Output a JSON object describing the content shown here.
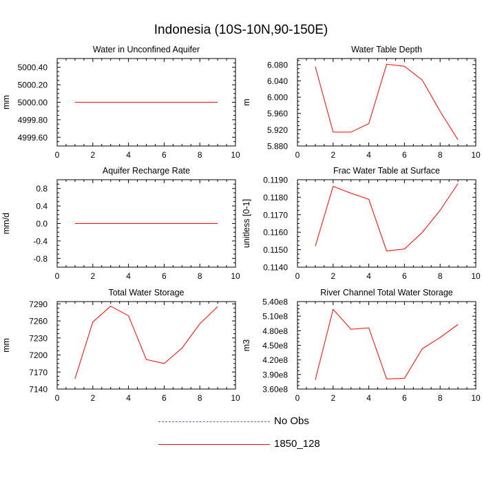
{
  "title": "Indonesia (10S-10N,90-150E)",
  "colors": {
    "model": "#ff0000",
    "obs": "#6060c0"
  },
  "legend": {
    "obs_label": "No Obs",
    "model_label": "1850_128"
  },
  "chart_data": [
    {
      "type": "line",
      "title": "Water in Unconfined Aquifer",
      "ylabel": "mm",
      "xlim": [
        0,
        10
      ],
      "ylim": [
        4999.5,
        5000.5
      ],
      "xticks": [
        0,
        2,
        4,
        6,
        8,
        10
      ],
      "yticks": [
        4999.6,
        4999.8,
        5000.0,
        5000.2,
        5000.4
      ],
      "ytick_labels": [
        "4999.60",
        "4999.80",
        "5000.00",
        "5000.20",
        "5000.40"
      ],
      "series": [
        {
          "name": "1850_128",
          "x": [
            1,
            2,
            3,
            4,
            5,
            6,
            7,
            8,
            9
          ],
          "values": [
            5000,
            5000,
            5000,
            5000,
            5000,
            5000,
            5000,
            5000,
            5000
          ]
        }
      ]
    },
    {
      "type": "line",
      "title": "Water Table Depth",
      "ylabel": "m",
      "xlim": [
        0,
        10
      ],
      "ylim": [
        5.88,
        6.095
      ],
      "xticks": [
        0,
        2,
        4,
        6,
        8,
        10
      ],
      "yticks": [
        5.88,
        5.92,
        5.96,
        6.0,
        6.04,
        6.08
      ],
      "ytick_labels": [
        "5.880",
        "5.920",
        "5.960",
        "6.000",
        "6.040",
        "6.080"
      ],
      "series": [
        {
          "name": "1850_128",
          "x": [
            1,
            2,
            3,
            4,
            5,
            6,
            7,
            8,
            9
          ],
          "values": [
            6.075,
            5.914,
            5.914,
            5.935,
            6.081,
            6.076,
            6.042,
            5.965,
            5.895
          ]
        }
      ]
    },
    {
      "type": "line",
      "title": "Aquifer Recharge Rate",
      "ylabel": "mm/d",
      "xlim": [
        0,
        10
      ],
      "ylim": [
        -1.0,
        1.0
      ],
      "xticks": [
        0,
        2,
        4,
        6,
        8,
        10
      ],
      "yticks": [
        -0.8,
        -0.4,
        0.0,
        0.4,
        0.8
      ],
      "ytick_labels": [
        "-0.8",
        "-0.4",
        "0.0",
        "0.4",
        "0.8"
      ],
      "series": [
        {
          "name": "1850_128",
          "x": [
            1,
            2,
            3,
            4,
            5,
            6,
            7,
            8,
            9
          ],
          "values": [
            0,
            0,
            0,
            0,
            0,
            0,
            0,
            0,
            0
          ]
        }
      ]
    },
    {
      "type": "line",
      "title": "Frac Water Table at Surface",
      "ylabel": "unitless [0-1]",
      "xlim": [
        0,
        10
      ],
      "ylim": [
        0.114,
        0.119
      ],
      "xticks": [
        0,
        2,
        4,
        6,
        8,
        10
      ],
      "yticks": [
        0.114,
        0.115,
        0.116,
        0.117,
        0.118,
        0.119
      ],
      "ytick_labels": [
        "0.1140",
        "0.1150",
        "0.1160",
        "0.1170",
        "0.1180",
        "0.1190"
      ],
      "series": [
        {
          "name": "1850_128",
          "x": [
            1,
            2,
            3,
            4,
            5,
            6,
            7,
            8,
            9
          ],
          "values": [
            0.1152,
            0.11862,
            0.11823,
            0.11788,
            0.11493,
            0.11504,
            0.11599,
            0.11725,
            0.11878
          ]
        }
      ]
    },
    {
      "type": "line",
      "title": "Total Water Storage",
      "ylabel": "mm",
      "xlim": [
        0,
        10
      ],
      "ylim": [
        7140,
        7294
      ],
      "xticks": [
        0,
        2,
        4,
        6,
        8,
        10
      ],
      "yticks": [
        7140,
        7170,
        7200,
        7230,
        7260,
        7290
      ],
      "ytick_labels": [
        "7140",
        "7170",
        "7200",
        "7230",
        "7260",
        "7290"
      ],
      "series": [
        {
          "name": "1850_128",
          "x": [
            1,
            2,
            3,
            4,
            5,
            6,
            7,
            8,
            9
          ],
          "values": [
            7158,
            7258,
            7286,
            7269,
            7192,
            7185,
            7212,
            7255,
            7285
          ]
        }
      ]
    },
    {
      "type": "line",
      "title": "River Channel Total Water Storage",
      "ylabel": "m3",
      "xlim": [
        0,
        10
      ],
      "ylim": [
        360000000.0,
        540000000.0
      ],
      "xticks": [
        0,
        2,
        4,
        6,
        8,
        10
      ],
      "yticks": [
        360000000.0,
        390000000.0,
        420000000.0,
        450000000.0,
        480000000.0,
        510000000.0,
        540000000.0
      ],
      "ytick_labels": [
        "3.60e8",
        "3.90e8",
        "4.20e8",
        "4.50e8",
        "4.80e8",
        "5.10e8",
        "5.40e8"
      ],
      "series": [
        {
          "name": "1850_128",
          "x": [
            1,
            2,
            3,
            4,
            5,
            6,
            7,
            8,
            9
          ],
          "values": [
            379000000.0,
            524000000.0,
            483000000.0,
            486000000.0,
            381000000.0,
            382000000.0,
            443000000.0,
            466000000.0,
            493000000.0
          ]
        }
      ]
    }
  ]
}
